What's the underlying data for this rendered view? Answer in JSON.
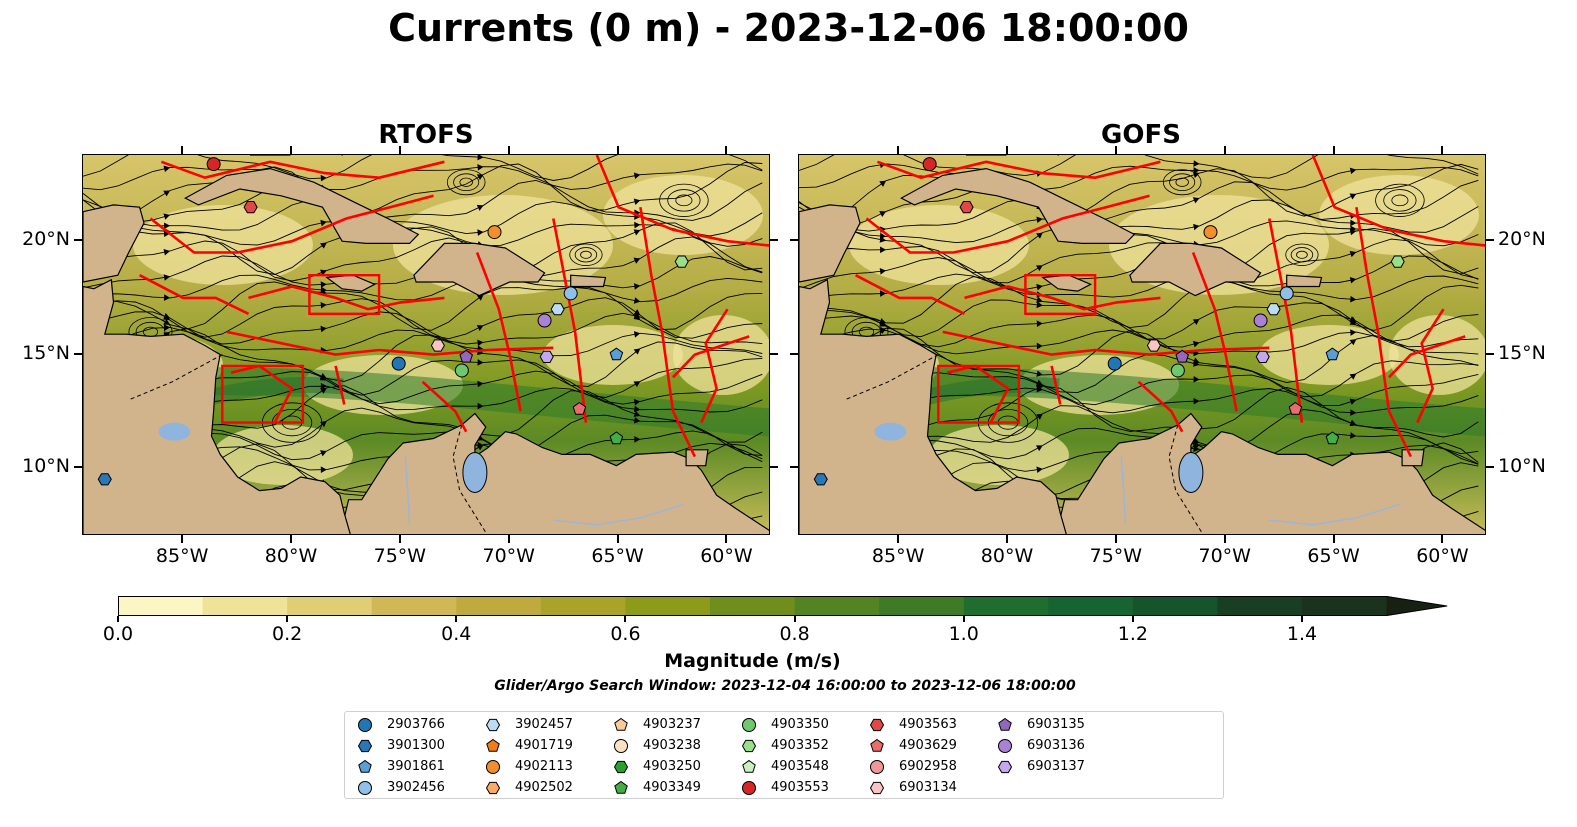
{
  "title": "Currents (0 m) - 2023-12-06 18:00:00",
  "panels": [
    {
      "title": "RTOFS"
    },
    {
      "title": "GOFS"
    }
  ],
  "x_ticks": [
    "85°W",
    "80°W",
    "75°W",
    "70°W",
    "65°W",
    "60°W"
  ],
  "y_ticks": [
    "20°N",
    "15°N",
    "10°N"
  ],
  "colorbar": {
    "label": "Magnitude (m/s)",
    "ticks": [
      "0.0",
      "0.2",
      "0.4",
      "0.6",
      "0.8",
      "1.0",
      "1.2",
      "1.4"
    ],
    "range": [
      0,
      1.5
    ],
    "extend": "max",
    "colors": [
      "#fbf6c4",
      "#efe39a",
      "#e1cd74",
      "#d1b856",
      "#bfaa40",
      "#a9a32a",
      "#8d9a1a",
      "#6f8e1c",
      "#548422",
      "#3f7b26",
      "#1f6e2f",
      "#156431",
      "#15552b",
      "#193f22",
      "#1b321c",
      "#1a2716",
      "#182012"
    ]
  },
  "search_window": "Glider/Argo Search Window: 2023-12-04 16:00:00 to 2023-12-06 18:00:00",
  "map_colors": {
    "land": "#d2b48c",
    "lakes": "#8fb4de",
    "rivers": "#9bb6d4",
    "eez": "#ff0000",
    "streamlines": "#000000"
  },
  "legend": [
    {
      "label": "2903766",
      "marker": "circle",
      "color": "#1f77b4"
    },
    {
      "label": "3901300",
      "marker": "hexagon",
      "color": "#2878b8"
    },
    {
      "label": "3901861",
      "marker": "pentagon",
      "color": "#5a9fd4"
    },
    {
      "label": "3902456",
      "marker": "circle",
      "color": "#8ec0ea"
    },
    {
      "label": "3902457",
      "marker": "hexagon",
      "color": "#bcdcf5"
    },
    {
      "label": "4901719",
      "marker": "pentagon",
      "color": "#f07d17"
    },
    {
      "label": "4902113",
      "marker": "circle",
      "color": "#f28e2b"
    },
    {
      "label": "4902502",
      "marker": "hexagon",
      "color": "#fbab63"
    },
    {
      "label": "4903237",
      "marker": "pentagon",
      "color": "#fcc99a"
    },
    {
      "label": "4903238",
      "marker": "circle",
      "color": "#fde0c2"
    },
    {
      "label": "4903250",
      "marker": "hexagon",
      "color": "#2ca02c"
    },
    {
      "label": "4903349",
      "marker": "pentagon",
      "color": "#43ae43"
    },
    {
      "label": "4903350",
      "marker": "circle",
      "color": "#6ec96e"
    },
    {
      "label": "4903352",
      "marker": "hexagon",
      "color": "#98df8a"
    },
    {
      "label": "4903548",
      "marker": "pentagon",
      "color": "#c7f2c0"
    },
    {
      "label": "4903553",
      "marker": "circle",
      "color": "#d62728"
    },
    {
      "label": "4903563",
      "marker": "hexagon",
      "color": "#e04747"
    },
    {
      "label": "4903629",
      "marker": "pentagon",
      "color": "#ea6d6d"
    },
    {
      "label": "6902958",
      "marker": "circle",
      "color": "#f29797"
    },
    {
      "label": "6903134",
      "marker": "hexagon",
      "color": "#fbc4c4"
    },
    {
      "label": "6903135",
      "marker": "pentagon",
      "color": "#9467bd"
    },
    {
      "label": "6903136",
      "marker": "circle",
      "color": "#a982d6"
    },
    {
      "label": "6903137",
      "marker": "hexagon",
      "color": "#c5a6f0"
    }
  ],
  "floats": [
    {
      "id": "4903553",
      "lon": -83.6,
      "lat": 23.4
    },
    {
      "id": "4903563",
      "lon": -81.9,
      "lat": 21.5
    },
    {
      "id": "4902113",
      "lon": -70.7,
      "lat": 20.4
    },
    {
      "id": "4903352",
      "lon": -62.1,
      "lat": 19.1
    },
    {
      "id": "3902456",
      "lon": -67.2,
      "lat": 17.7
    },
    {
      "id": "3902457",
      "lon": -67.8,
      "lat": 17.0
    },
    {
      "id": "6903136",
      "lon": -68.4,
      "lat": 16.5
    },
    {
      "id": "6903134",
      "lon": -73.3,
      "lat": 15.4
    },
    {
      "id": "6903135",
      "lon": -72.0,
      "lat": 14.9
    },
    {
      "id": "3901861",
      "lon": -65.1,
      "lat": 15.0
    },
    {
      "id": "6903137",
      "lon": -68.3,
      "lat": 14.9
    },
    {
      "id": "2903766",
      "lon": -75.1,
      "lat": 14.6
    },
    {
      "id": "4903350",
      "lon": -72.2,
      "lat": 14.3
    },
    {
      "id": "4903629",
      "lon": -66.8,
      "lat": 12.6
    },
    {
      "id": "4903349",
      "lon": -65.1,
      "lat": 11.3
    },
    {
      "id": "3901300",
      "lon": -88.6,
      "lat": 9.5
    }
  ]
}
